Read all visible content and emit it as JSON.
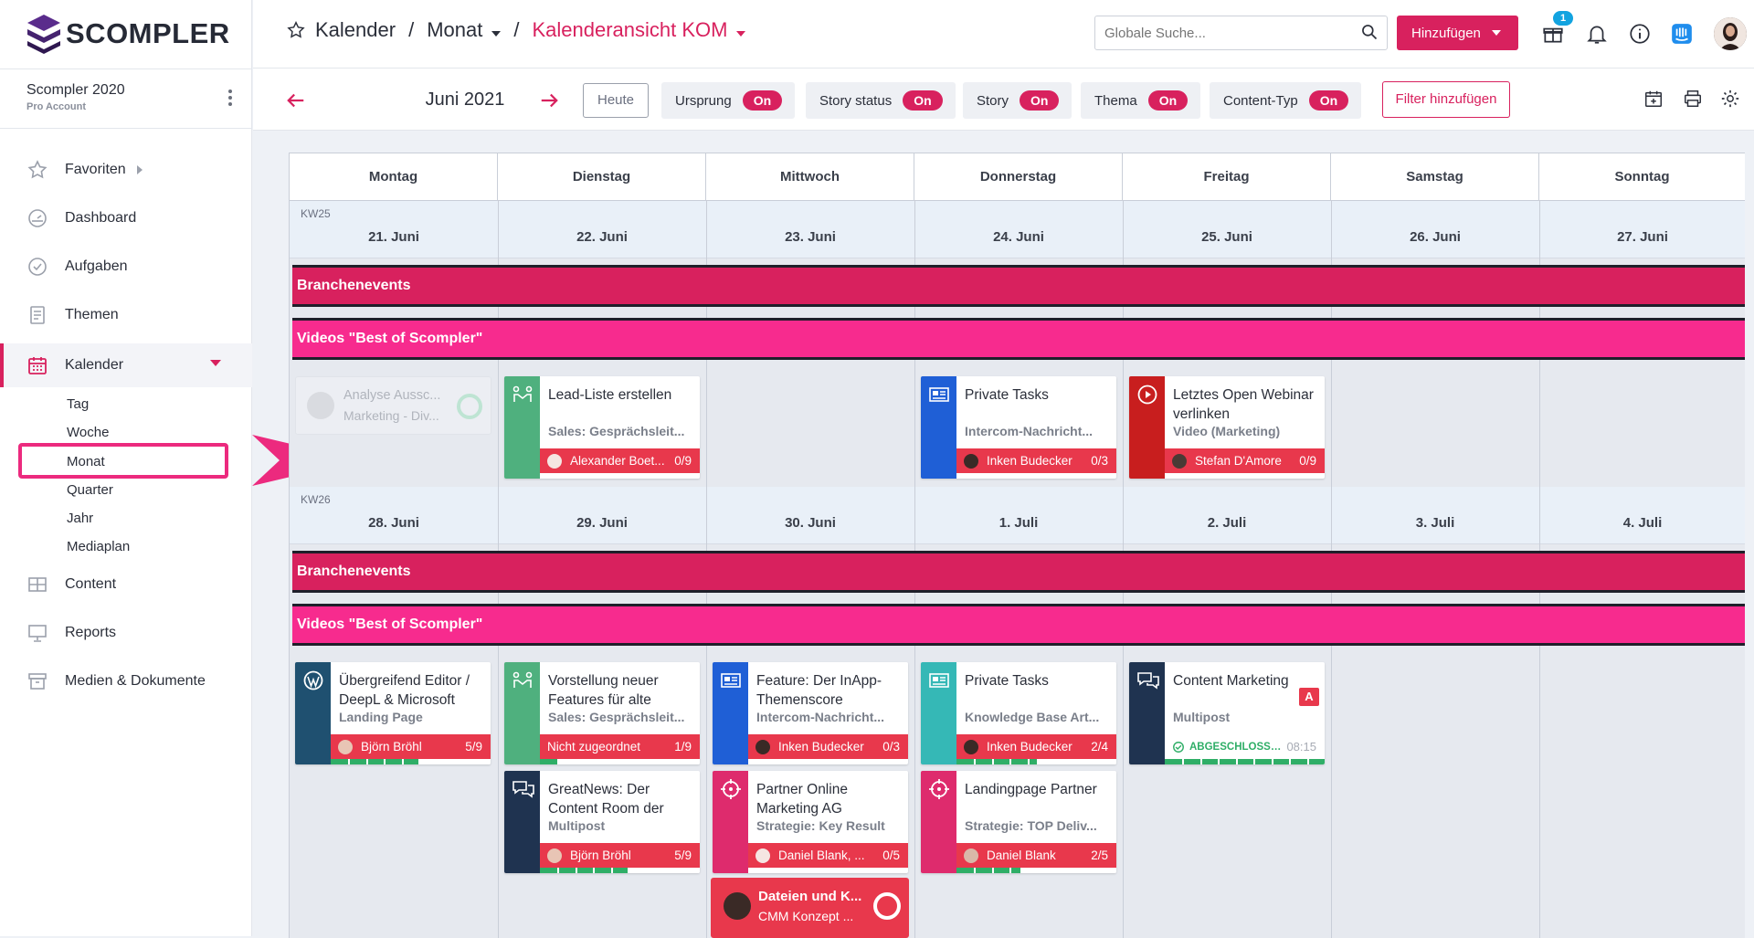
{
  "app": {
    "brand": "SCOMPLER"
  },
  "account": {
    "name": "Scompler 2020",
    "plan": "Pro Account"
  },
  "nav": {
    "favorites": "Favoriten",
    "dashboard": "Dashboard",
    "tasks": "Aufgaben",
    "topics": "Themen",
    "calendar": "Kalender",
    "sub": [
      "Tag",
      "Woche",
      "Monat",
      "Quarter",
      "Jahr",
      "Mediaplan"
    ],
    "content": "Content",
    "reports": "Reports",
    "media": "Medien & Dokumente"
  },
  "breadcrumb": {
    "root": "Kalender",
    "sep": "/",
    "view": "Monat",
    "current": "Kalenderansicht KOM"
  },
  "header": {
    "search_placeholder": "Globale Suche...",
    "add_label": "Hinzufügen",
    "notif_count": "1"
  },
  "toolbar": {
    "month": "Juni 2021",
    "today": "Heute",
    "filters": [
      {
        "label": "Ursprung",
        "state": "On"
      },
      {
        "label": "Story status",
        "state": "On"
      },
      {
        "label": "Story",
        "state": "On"
      },
      {
        "label": "Thema",
        "state": "On"
      },
      {
        "label": "Content-Typ",
        "state": "On"
      }
    ],
    "add_filter": "Filter hinzufügen"
  },
  "calendar": {
    "weekdays": [
      "Montag",
      "Dienstag",
      "Mittwoch",
      "Donnerstag",
      "Freitag",
      "Samstag",
      "Sonntag"
    ],
    "weeks": [
      {
        "kw": "KW25",
        "dates": [
          "21. Juni",
          "22. Juni",
          "23. Juni",
          "24. Juni",
          "25. Juni",
          "26. Juni",
          "27. Juni"
        ],
        "bands": [
          "Branchenevents",
          "Videos \"Best of Scompler\""
        ],
        "cards": [
          {
            "title": "Lead-Liste erstellen",
            "subtitle": "Sales: Gesprächsleit...",
            "assignee": "Alexander Boet...",
            "count": "0/9"
          },
          {
            "title": "Private Tasks",
            "subtitle": "Intercom-Nachricht...",
            "assignee": "Inken Budecker",
            "count": "0/3"
          },
          {
            "title": "Letztes Open Webinar verlinken",
            "subtitle": "Video (Marketing)",
            "assignee": "Stefan D'Amore",
            "count": "0/9"
          }
        ],
        "ghost": {
          "title": "Analyse Aussc...",
          "subtitle": "Marketing - Div..."
        }
      },
      {
        "kw": "KW26",
        "dates": [
          "28. Juni",
          "29. Juni",
          "30. Juni",
          "1. Juli",
          "2. Juli",
          "3. Juli",
          "4. Juli"
        ],
        "bands": [
          "Branchenevents",
          "Videos \"Best of Scompler\""
        ],
        "cards": [
          {
            "title": "Übergreifend Editor / DeepL & Microsoft",
            "subtitle": "Landing Page",
            "assignee": "Björn Bröhl",
            "count": "5/9",
            "progress": 0.55
          },
          {
            "title": "Vorstellung neuer Features für alte",
            "subtitle": "Sales: Gesprächsleit...",
            "assignee": "Nicht zugeordnet",
            "count": "1/9",
            "progress": 0.11
          },
          {
            "title": "Feature: Der InApp-Themenscore",
            "subtitle": "Intercom-Nachricht...",
            "assignee": "Inken Budecker",
            "count": "0/3"
          },
          {
            "title": "Private Tasks",
            "subtitle": "Knowledge Base Art...",
            "assignee": "Inken Budecker",
            "count": "2/4",
            "progress": 0.5
          },
          {
            "title": "Content Marketing",
            "subtitle": "Multipost",
            "badge": "A",
            "status": "ABGESCHLOSSEN",
            "time": "08:15",
            "progress": 1.0
          },
          {
            "title": "GreatNews: Der Content Room der",
            "subtitle": "Multipost",
            "assignee": "Björn Bröhl",
            "count": "5/9",
            "progress": 0.55
          },
          {
            "title": "Partner Online Marketing AG",
            "subtitle": "Strategie: Key Result",
            "assignee": "Daniel Blank, ...",
            "count": "0/5"
          },
          {
            "title": "Landingpage Partner",
            "subtitle": "Strategie: TOP Deliv...",
            "assignee": "Daniel Blank",
            "count": "2/5",
            "progress": 0.4
          }
        ],
        "event": {
          "title": "Dateien und K...",
          "subtitle": "CMM Konzept ..."
        }
      }
    ]
  },
  "colors": {
    "accent": "#d8215e",
    "band_a": "#d8215e",
    "band_b": "#f72b8e",
    "sales": "#4fb07e",
    "intercom": "#1f5fd6",
    "video": "#c81e1e",
    "wordpress": "#1f5070",
    "multipost": "#1f3350",
    "strategy": "#de2b6d",
    "knowledge": "#35b8b6"
  }
}
